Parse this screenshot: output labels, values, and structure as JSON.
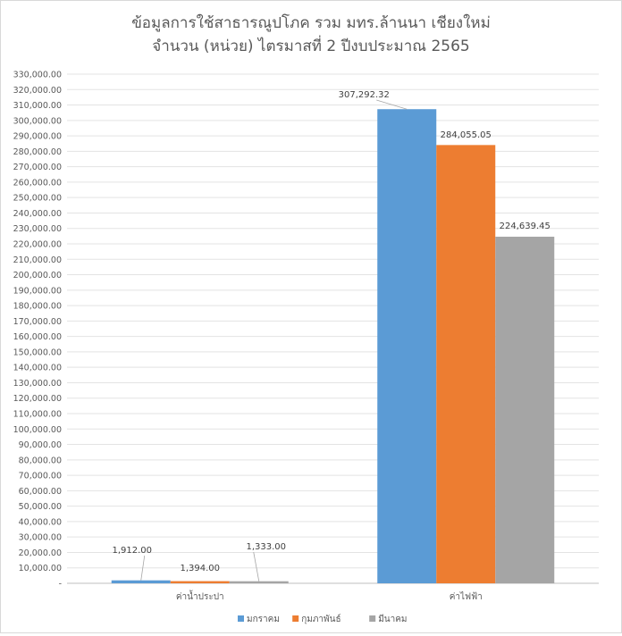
{
  "chart_data": {
    "type": "bar",
    "title_line1": "ข้อมูลการใช้สาธารณูปโภค รวม มทร.ล้านนา เชียงใหม่",
    "title_line2": "จำนวน (หน่วย) ไตรมาสที่ 2 ปีงบประมาณ 2565",
    "categories": [
      "ค่าน้ำประปา",
      "ค่าไฟฟ้า"
    ],
    "series": [
      {
        "name": "มกราคม",
        "color": "#5b9bd5",
        "values": [
          1912.0,
          307292.32
        ],
        "labels": [
          "1,912.00",
          "307,292.32"
        ]
      },
      {
        "name": "กุมภาพันธ์",
        "color": "#ed7d31",
        "values": [
          1394.0,
          284055.05
        ],
        "labels": [
          "1,394.00",
          "284,055.05"
        ]
      },
      {
        "name": "มีนาคม",
        "color": "#a5a5a5",
        "values": [
          1333.0,
          224639.45
        ],
        "labels": [
          "1,333.00",
          "224,639.45"
        ]
      }
    ],
    "ylim": [
      0,
      330000
    ],
    "ystep": 10000,
    "ytick_zero_label": "-",
    "grid": true,
    "legend_position": "bottom"
  }
}
